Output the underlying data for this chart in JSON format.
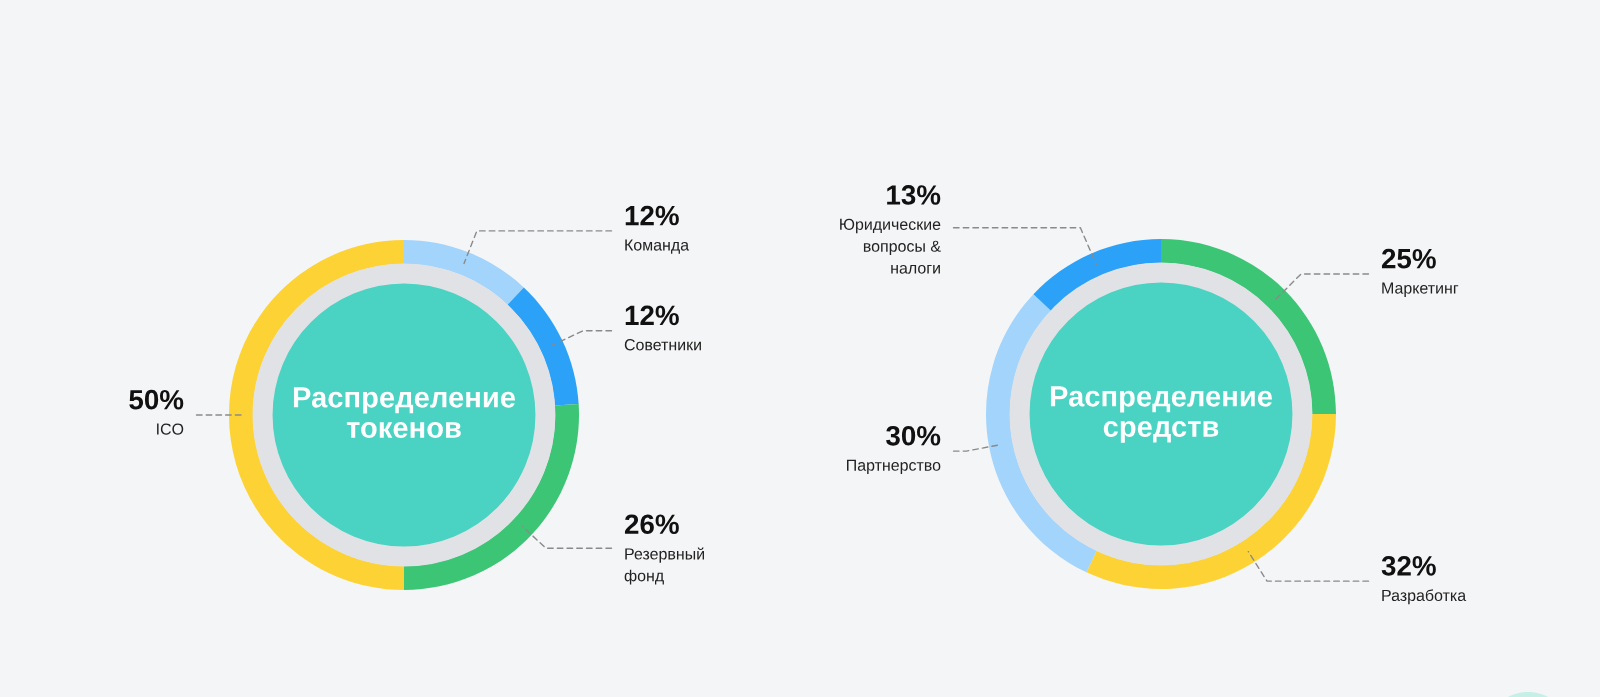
{
  "chart_data": [
    {
      "type": "donut",
      "title": "Распределение\nтокенов",
      "categories": [
        "Команда",
        "Советники",
        "Резервный\nфонд",
        "ICO"
      ],
      "values": [
        12,
        12,
        26,
        50
      ],
      "colors": [
        "#a3d4fb",
        "#2ba2f8",
        "#3bc575",
        "#fdd235"
      ],
      "value_labels": [
        "12%",
        "12%",
        "26%",
        "50%"
      ]
    },
    {
      "type": "donut",
      "title": "Распределение\nсредств",
      "categories": [
        "Маркетинг",
        "Разработка",
        "Партнерство",
        "Юридические\nвопросы &\nналоги"
      ],
      "values": [
        25,
        32,
        30,
        13
      ],
      "colors": [
        "#3bc575",
        "#fdd235",
        "#a3d4fb",
        "#2ba2f8"
      ],
      "value_labels": [
        "25%",
        "32%",
        "30%",
        "13%"
      ]
    }
  ]
}
